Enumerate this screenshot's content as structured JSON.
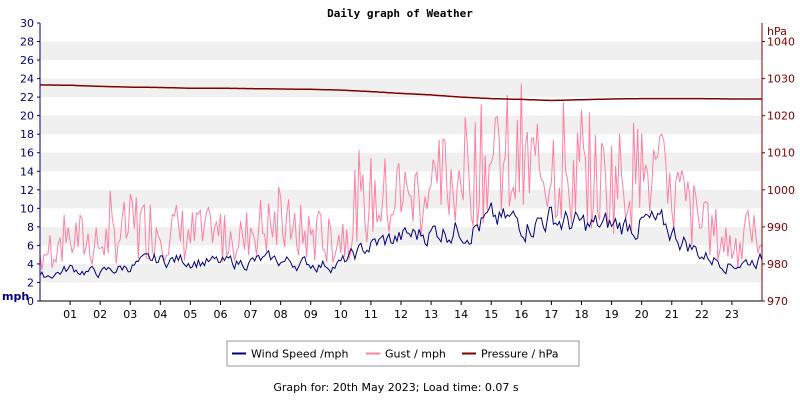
{
  "chart_data": {
    "type": "line",
    "title": "Daily graph of Weather",
    "x_tick_labels": [
      "01",
      "02",
      "03",
      "04",
      "05",
      "06",
      "07",
      "08",
      "09",
      "10",
      "11",
      "12",
      "13",
      "14",
      "15",
      "16",
      "17",
      "18",
      "19",
      "20",
      "21",
      "22",
      "23"
    ],
    "x_range_hours": [
      0,
      24
    ],
    "left_axis": {
      "unit": "mph",
      "range": [
        0,
        30
      ],
      "ticks": [
        0,
        2,
        4,
        6,
        8,
        10,
        12,
        14,
        16,
        18,
        20,
        22,
        24,
        26,
        28,
        30
      ]
    },
    "right_axis": {
      "unit": "hPa",
      "range": [
        970,
        1045
      ],
      "ticks": [
        970,
        980,
        990,
        1000,
        1010,
        1020,
        1030,
        1040
      ]
    },
    "grid": "horizontal alternating bands",
    "legend_placement": "bottom-center",
    "series": [
      {
        "name": "Wind Speed /mph",
        "color": "#000080",
        "axis": "left",
        "x_hours": [
          0,
          1,
          2,
          3,
          4,
          5,
          6,
          7,
          8,
          9,
          10,
          11,
          12,
          13,
          14,
          15,
          16,
          17,
          18,
          19,
          20,
          21,
          22,
          23,
          24
        ],
        "values": [
          2.5,
          3.5,
          3.0,
          3.8,
          4.4,
          4.5,
          4.0,
          4.3,
          4.3,
          4.0,
          4.0,
          6.0,
          6.8,
          7.5,
          8.0,
          8.5,
          8.5,
          9.0,
          8.0,
          8.0,
          8.5,
          7.5,
          5.0,
          4.0,
          4.5
        ]
      },
      {
        "name": "Gust / mph",
        "color": "#ff80a0",
        "axis": "left",
        "x_hours": [
          0,
          1,
          2,
          3,
          4,
          5,
          6,
          7,
          8,
          9,
          10,
          11,
          12,
          13,
          14,
          15,
          16,
          17,
          18,
          19,
          20,
          21,
          22,
          23,
          24
        ],
        "values": [
          5,
          7,
          6,
          8,
          8,
          7,
          7,
          8,
          8,
          7,
          7,
          11,
          11,
          12,
          14,
          15,
          14,
          15,
          13,
          13,
          14,
          12,
          8,
          6,
          7
        ]
      },
      {
        "name": "Pressure / hPa",
        "color": "#800000",
        "axis": "right",
        "x_hours": [
          0,
          1,
          2,
          3,
          4,
          5,
          6,
          7,
          8,
          9,
          10,
          11,
          12,
          13,
          14,
          15,
          16,
          17,
          18,
          19,
          20,
          21,
          22,
          23,
          24
        ],
        "values": [
          1028.3,
          1028.2,
          1027.9,
          1027.7,
          1027.6,
          1027.4,
          1027.4,
          1027.3,
          1027.2,
          1027.1,
          1026.9,
          1026.5,
          1026.0,
          1025.6,
          1025.0,
          1024.6,
          1024.4,
          1024.1,
          1024.3,
          1024.5,
          1024.6,
          1024.6,
          1024.6,
          1024.5,
          1024.5
        ]
      }
    ]
  },
  "footer_text": "Graph for: 20th May 2023; Load time: 0.07 s"
}
